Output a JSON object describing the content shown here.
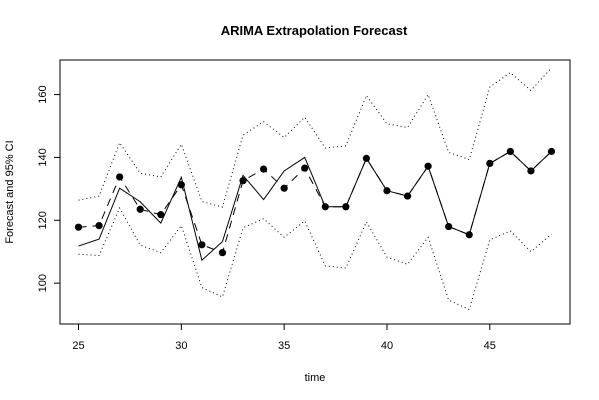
{
  "chart_data": {
    "type": "line",
    "title": "ARIMA Extrapolation Forecast",
    "xlabel": "time",
    "ylabel": "Forecast and 95% CI",
    "xlim": [
      24.1,
      48.9
    ],
    "ylim": [
      87,
      171
    ],
    "x_ticks": [
      25,
      30,
      35,
      40,
      45
    ],
    "y_ticks": [
      100,
      120,
      140,
      160
    ],
    "x": [
      25,
      26,
      27,
      28,
      29,
      30,
      31,
      32,
      33,
      34,
      35,
      36,
      37,
      38,
      39,
      40,
      41,
      42,
      43,
      44,
      45,
      46,
      47,
      48
    ],
    "series": [
      {
        "style": "dashed-points",
        "values": [
          117.8,
          118.3,
          133.8,
          123.5,
          121.8,
          131.3,
          112.2,
          109.7,
          132.6,
          136.3,
          130.2,
          136.6,
          124.3,
          124.3,
          139.7,
          129.4,
          127.7,
          137.2,
          118.0,
          115.4,
          138.1,
          141.9,
          135.7,
          141.9
        ]
      },
      {
        "style": "solid",
        "values": [
          111.8,
          114.0,
          130.2,
          125.9,
          119.1,
          133.7,
          107.3,
          113.2,
          134.3,
          126.6,
          135.7,
          140.0,
          124.3,
          124.3,
          139.7,
          129.4,
          127.7,
          137.2,
          118.0,
          115.4,
          138.1,
          141.9,
          135.7,
          141.9
        ]
      },
      {
        "style": "dotted",
        "values": [
          126.4,
          127.7,
          144.7,
          135.0,
          133.8,
          144.2,
          126.0,
          124.2,
          147.1,
          151.4,
          146.3,
          152.8,
          143.0,
          143.7,
          159.7,
          150.7,
          149.5,
          160.0,
          141.6,
          139.3,
          162.4,
          167.0,
          161.3,
          168.5
        ]
      },
      {
        "style": "dotted",
        "values": [
          109.2,
          108.8,
          123.9,
          112.1,
          109.7,
          118.3,
          98.6,
          95.6,
          117.6,
          120.5,
          114.6,
          119.8,
          105.5,
          104.8,
          119.5,
          108.3,
          106.0,
          114.6,
          94.6,
          91.6,
          113.8,
          116.6,
          110.0,
          115.6
        ]
      }
    ]
  }
}
